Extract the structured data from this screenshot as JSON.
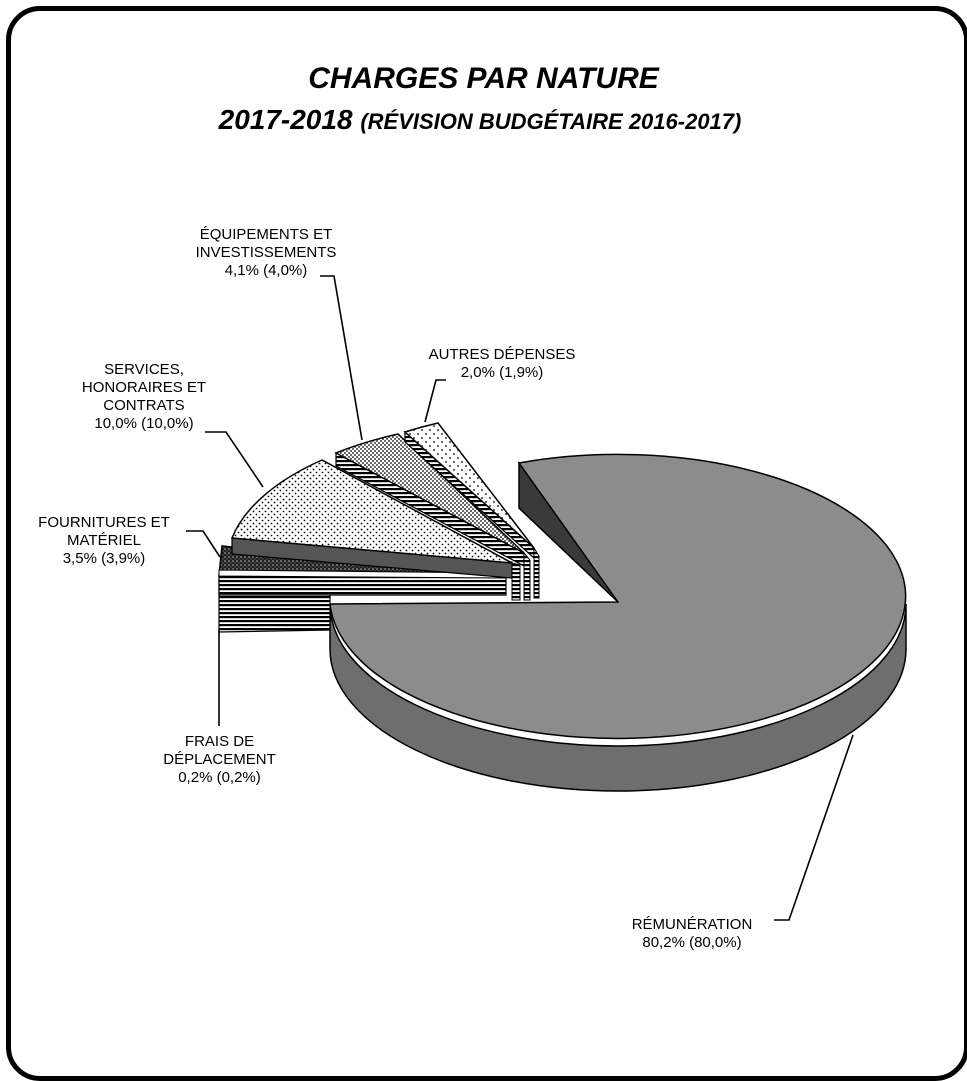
{
  "chart_data": {
    "type": "pie",
    "title": "CHARGES PAR NATURE",
    "subtitle_main": "2017-2018",
    "subtitle_note": "(RÉVISION BUDGÉTAIRE 2016-2017)",
    "slices": [
      {
        "key": "remuneration",
        "label": "RÉMUNÉRATION",
        "value": 80.2,
        "prev": 80.0,
        "value_label": "80,2% (80,0%)"
      },
      {
        "key": "frais",
        "label_lines": [
          "FRAIS DE",
          "DÉPLACEMENT"
        ],
        "value": 0.2,
        "prev": 0.2,
        "value_label": "0,2% (0,2%)"
      },
      {
        "key": "fournitures",
        "label_lines": [
          "FOURNITURES ET",
          "MATÉRIEL"
        ],
        "value": 3.5,
        "prev": 3.9,
        "value_label": "3,5% (3,9%)"
      },
      {
        "key": "services",
        "label_lines": [
          "SERVICES,",
          "HONORAIRES ET",
          "CONTRATS"
        ],
        "value": 10.0,
        "prev": 10.0,
        "value_label": "10,0% (10,0%)"
      },
      {
        "key": "equipements",
        "label_lines": [
          "ÉQUIPEMENTS ET",
          "INVESTISSEMENTS"
        ],
        "value": 4.1,
        "prev": 4.0,
        "value_label": "4,1% (4,0%)"
      },
      {
        "key": "autres",
        "label": "AUTRES DÉPENSES",
        "value": 2.0,
        "prev": 1.9,
        "value_label": "2,0% (1,9%)"
      }
    ],
    "style": "3d-exploded"
  }
}
